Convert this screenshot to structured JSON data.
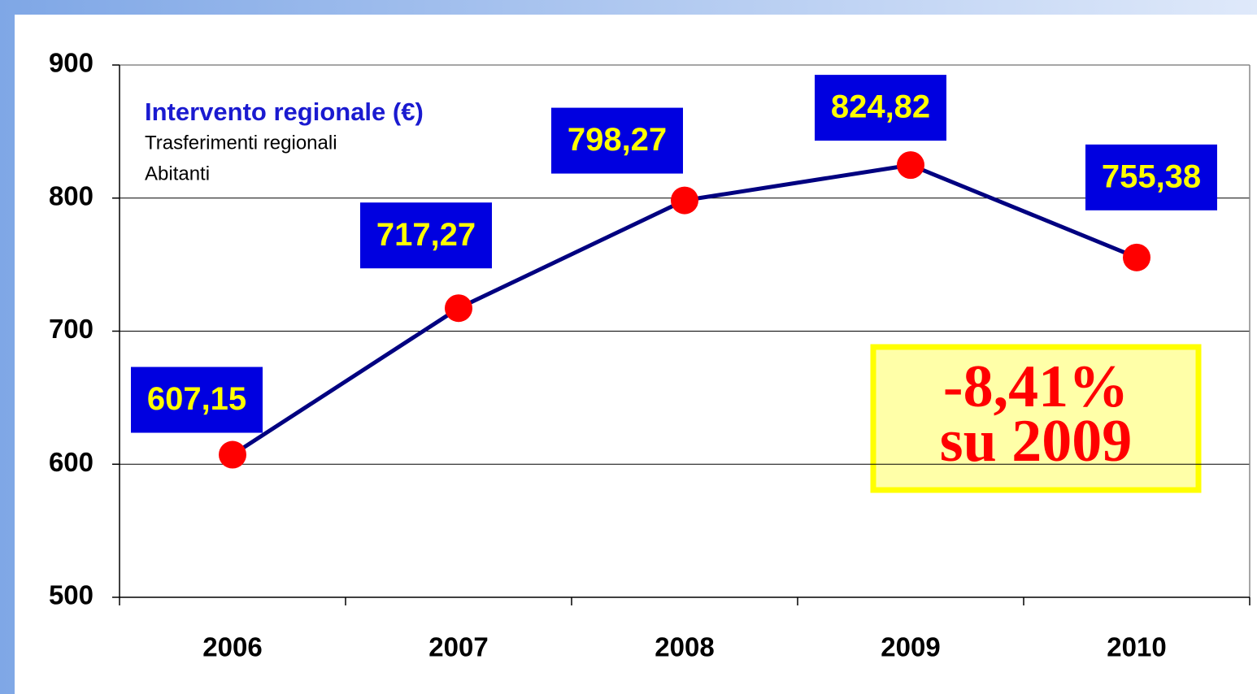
{
  "chart_data": {
    "type": "line",
    "title": "Intervento regionale  (€)",
    "subtitle": [
      "Trasferimenti regionali",
      "Abitanti"
    ],
    "categories": [
      "2006",
      "2007",
      "2008",
      "2009",
      "2010"
    ],
    "series": [
      {
        "name": "Intervento regionale",
        "color": "#000080",
        "values": [
          607.15,
          717.27,
          798.27,
          824.82,
          755.38
        ],
        "value_labels": [
          "607,15",
          "717,27",
          "798,27",
          "824,82",
          "755,38"
        ]
      }
    ],
    "marker_color": "#ff0000",
    "ylim": [
      500,
      900
    ],
    "yticks": [
      500,
      600,
      700,
      800,
      900
    ],
    "grid": true,
    "annotations": [
      "-8,41%",
      "su 2009"
    ]
  }
}
